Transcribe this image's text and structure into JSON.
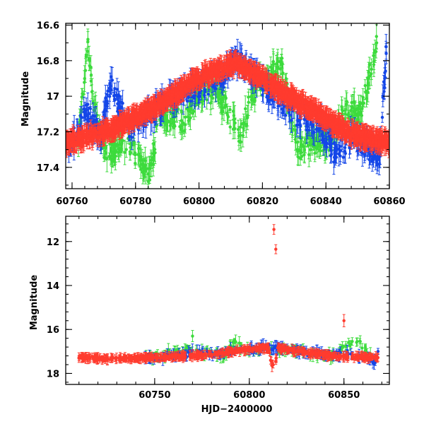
{
  "colors": {
    "red": "#ff3b2e",
    "green": "#3ddb3d",
    "blue": "#1446e8",
    "frame": "#000000"
  },
  "chart_data": [
    {
      "type": "scatter",
      "xlabel": "",
      "ylabel": "Magnitude",
      "xlim": [
        60758,
        60860
      ],
      "ylim": [
        17.52,
        16.59
      ],
      "y_inverted": true,
      "x_ticks": [
        60760,
        60780,
        60800,
        60820,
        60840,
        60860
      ],
      "x_tick_labels": [
        "60760",
        "60780",
        "60800",
        "60820",
        "60840",
        "60860"
      ],
      "y_ticks": [
        16.6,
        16.8,
        17,
        17.2,
        17.4
      ],
      "y_tick_labels": [
        "16.6",
        "16.8",
        "17",
        "17.2",
        "17.4"
      ],
      "legend": "none",
      "error_bars": true,
      "series": [
        {
          "color": "red",
          "x": [
            60758,
            60762,
            60766,
            60770,
            60774,
            60778,
            60782,
            60786,
            60790,
            60794,
            60798,
            60802,
            60806,
            60810,
            60812,
            60816,
            60820,
            60824,
            60828,
            60832,
            60836,
            60840,
            60844,
            60848,
            60852,
            60856,
            60860
          ],
          "y": [
            17.26,
            17.24,
            17.22,
            17.2,
            17.17,
            17.14,
            17.1,
            17.06,
            17.02,
            16.97,
            16.92,
            16.88,
            16.85,
            16.82,
            16.82,
            16.86,
            16.9,
            16.95,
            17.0,
            17.04,
            17.08,
            17.13,
            17.17,
            17.21,
            17.23,
            17.25,
            17.26
          ]
        },
        {
          "color": "blue",
          "x": [
            60759,
            60764,
            60769,
            60772,
            60778,
            60783,
            60790,
            60796,
            60803,
            60808,
            60811,
            60818,
            60825,
            60832,
            60838,
            60843,
            60848,
            60852,
            60857,
            60859
          ],
          "y": [
            17.3,
            17.08,
            17.22,
            16.93,
            17.18,
            17.12,
            17.03,
            16.98,
            16.93,
            16.87,
            16.78,
            16.9,
            17.02,
            17.12,
            17.16,
            17.33,
            17.23,
            17.28,
            17.33,
            16.76
          ]
        },
        {
          "color": "green",
          "x": [
            60762,
            60765,
            60767,
            60771,
            60776,
            60782,
            60784,
            60788,
            60795,
            60800,
            60806,
            60813,
            60817,
            60822,
            60826,
            60831,
            60836,
            60842,
            60846,
            60851,
            60856
          ],
          "y": [
            17.28,
            16.68,
            17.08,
            17.35,
            17.25,
            17.36,
            17.48,
            17.08,
            17.15,
            16.98,
            16.98,
            17.22,
            16.98,
            16.88,
            16.82,
            17.3,
            17.26,
            17.24,
            17.08,
            17.1,
            16.7
          ]
        }
      ]
    },
    {
      "type": "scatter",
      "xlabel": "HJD−2400000",
      "ylabel": "Magnitude",
      "xlim": [
        60703,
        60874
      ],
      "ylim": [
        18.5,
        10.85
      ],
      "y_inverted": true,
      "x_ticks": [
        60750,
        60800,
        60850
      ],
      "x_tick_labels": [
        "60750",
        "60800",
        "60850"
      ],
      "y_ticks": [
        12,
        14,
        16,
        18
      ],
      "y_tick_labels": [
        "12",
        "14",
        "16",
        "18"
      ],
      "legend": "none",
      "error_bars": true,
      "series": [
        {
          "color": "red",
          "x": [
            60710,
            60715,
            60720,
            60725,
            60735,
            60745,
            60755,
            60765,
            60775,
            60785,
            60795,
            60805,
            60810,
            60815,
            60820,
            60830,
            60840,
            60850,
            60860,
            60868,
            60813,
            60814,
            60850,
            60812,
            60814
          ],
          "y": [
            17.28,
            17.3,
            17.3,
            17.36,
            17.3,
            17.28,
            17.26,
            17.22,
            17.18,
            17.08,
            16.95,
            16.86,
            16.82,
            16.84,
            16.92,
            17.05,
            17.16,
            17.23,
            17.26,
            17.28,
            11.45,
            12.35,
            15.6,
            17.65,
            17.45
          ]
        },
        {
          "color": "blue",
          "x": [
            60745,
            60755,
            60762,
            60775,
            60782,
            60790,
            60800,
            60807,
            60813,
            60820,
            60830,
            60840,
            60846,
            60852,
            60858,
            60863,
            60866,
            60868
          ],
          "y": [
            17.28,
            17.24,
            17.2,
            17.02,
            17.12,
            16.98,
            16.93,
            16.82,
            16.85,
            16.9,
            17.05,
            17.15,
            17.18,
            17.1,
            17.2,
            17.3,
            17.55,
            17.0
          ]
        },
        {
          "color": "green",
          "x": [
            60745,
            60750,
            60758,
            60766,
            60770,
            60780,
            60786,
            60792,
            60800,
            60810,
            60818,
            60828,
            60836,
            60844,
            60851,
            60857,
            60864
          ],
          "y": [
            17.3,
            17.2,
            17.05,
            16.92,
            16.3,
            17.05,
            17.25,
            16.6,
            17.0,
            16.85,
            16.9,
            16.95,
            17.22,
            17.18,
            16.75,
            16.55,
            17.1
          ]
        }
      ]
    }
  ]
}
